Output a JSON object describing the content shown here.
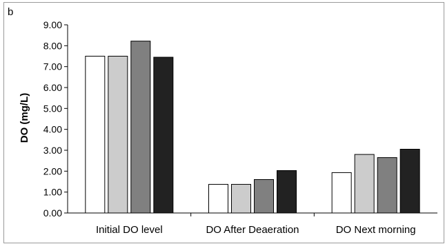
{
  "panel_label": "b",
  "chart_data": {
    "type": "bar",
    "title": "",
    "xlabel": "",
    "ylabel": "DO (mg/L)",
    "ylim": [
      0,
      9
    ],
    "yticks": [
      "0.00",
      "1.00",
      "2.00",
      "3.00",
      "4.00",
      "5.00",
      "6.00",
      "7.00",
      "8.00",
      "9.00"
    ],
    "grid": false,
    "legend": "none",
    "categories": [
      "Initial DO level",
      "DO After Deaeration",
      "DO Next morning"
    ],
    "series": [
      {
        "color": "#ffffff",
        "values": [
          7.5,
          1.37,
          1.93
        ]
      },
      {
        "color": "#cccccc",
        "values": [
          7.5,
          1.37,
          2.8
        ]
      },
      {
        "color": "#808080",
        "values": [
          8.22,
          1.6,
          2.65
        ]
      },
      {
        "color": "#222222",
        "values": [
          7.45,
          2.03,
          3.05
        ]
      }
    ]
  }
}
